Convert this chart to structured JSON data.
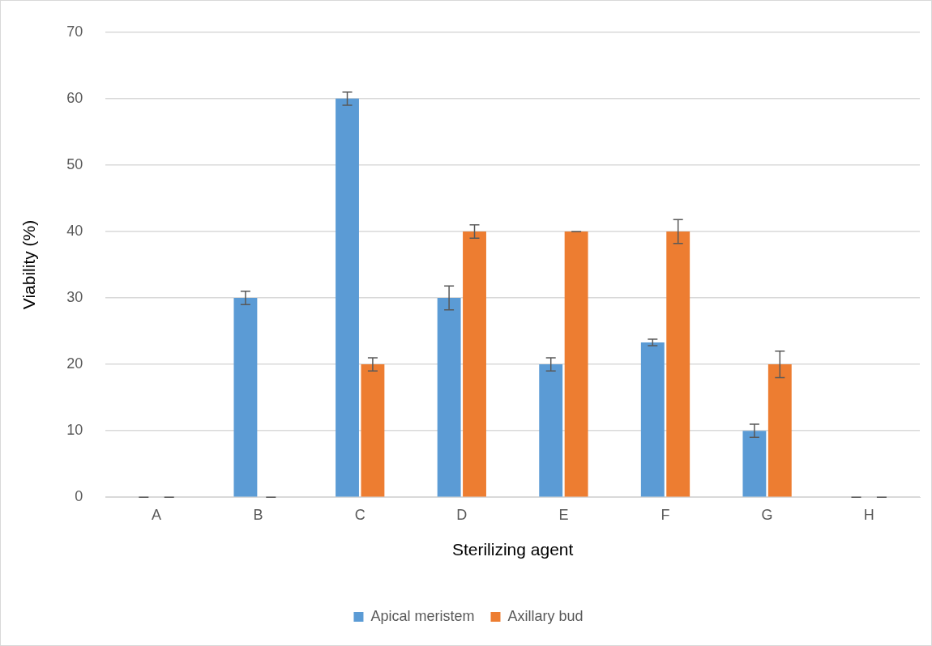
{
  "chart_data": {
    "type": "bar",
    "xlabel": "Sterilizing agent",
    "ylabel": "Viability (%)",
    "categories": [
      "A",
      "B",
      "C",
      "D",
      "E",
      "F",
      "G",
      "H"
    ],
    "series": [
      {
        "name": "Apical meristem",
        "color": "#5b9bd5",
        "values": [
          0,
          30,
          60,
          30,
          20,
          23.3,
          10,
          0
        ],
        "errors": [
          0,
          1,
          1,
          1.8,
          1,
          0.5,
          1,
          0
        ]
      },
      {
        "name": "Axillary bud",
        "color": "#ed7d31",
        "values": [
          0,
          0,
          20,
          40,
          40,
          40,
          20,
          0
        ],
        "errors": [
          0,
          0,
          1,
          1,
          0,
          1.8,
          2,
          0
        ]
      }
    ],
    "ylim": [
      0,
      70
    ],
    "yticks": [
      0,
      10,
      20,
      30,
      40,
      50,
      60,
      70
    ],
    "grid": "y",
    "legend": "bottom"
  }
}
